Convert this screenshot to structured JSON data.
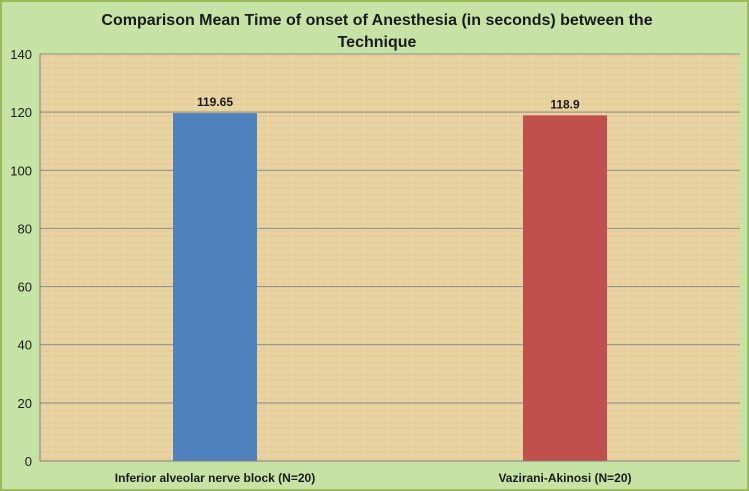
{
  "chart_data": {
    "type": "bar",
    "title": "Comparison Mean Time of onset of Anesthesia (in seconds) between the Technique",
    "categories": [
      "Inferior alveolar nerve block (N=20)",
      "Vazirani-Akinosi (N=20)"
    ],
    "values": [
      119.65,
      118.9
    ],
    "data_labels": [
      "119.65",
      "118.9"
    ],
    "bar_colors": [
      "#4f81bd",
      "#c0504d"
    ],
    "ylim": [
      0,
      140
    ],
    "yticks": [
      0,
      20,
      40,
      60,
      80,
      100,
      120,
      140
    ],
    "grid": true,
    "legend": "none"
  },
  "colors": {
    "frame_background": "#c6e3a5",
    "frame_border": "#9bbb59",
    "plot_background": "#e8d4a0"
  }
}
